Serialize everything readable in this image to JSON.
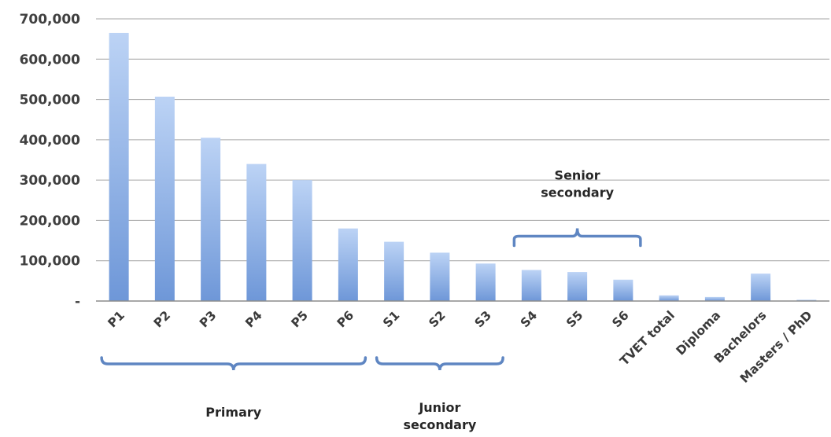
{
  "chart_data": {
    "type": "bar",
    "title": "",
    "xlabel": "",
    "ylabel": "",
    "ylim": [
      0,
      700000
    ],
    "grid": true,
    "categories": [
      "P1",
      "P2",
      "P3",
      "P4",
      "P5",
      "P6",
      "S1",
      "S2",
      "S3",
      "S4",
      "S5",
      "S6",
      "TVET total",
      "Diploma",
      "Bachelors",
      "Masters / PhD"
    ],
    "values": [
      665000,
      507000,
      405000,
      340000,
      300000,
      180000,
      147000,
      120000,
      93000,
      77000,
      72000,
      53000,
      14000,
      10000,
      68000,
      3000
    ],
    "y_ticks": [
      {
        "value": 0,
        "label": "-"
      },
      {
        "value": 100000,
        "label": "100,000"
      },
      {
        "value": 200000,
        "label": "200,000"
      },
      {
        "value": 300000,
        "label": "300,000"
      },
      {
        "value": 400000,
        "label": "400,000"
      },
      {
        "value": 500000,
        "label": "500,000"
      },
      {
        "value": 600000,
        "label": "600,000"
      },
      {
        "value": 700000,
        "label": "700,000"
      }
    ],
    "groups": [
      {
        "label_lines": [
          "Primary"
        ],
        "from": "P1",
        "to": "P6",
        "position": "below-axis"
      },
      {
        "label_lines": [
          "Junior",
          "secondary"
        ],
        "from": "S1",
        "to": "S3",
        "position": "below-axis"
      },
      {
        "label_lines": [
          "Senior",
          "secondary"
        ],
        "from": "S4",
        "to": "S6",
        "position": "above-bars"
      }
    ],
    "colors": {
      "bar_top": "#bcd3f5",
      "bar_bottom": "#6e97d8",
      "bracket": "#5f86c2",
      "grid": "#a6a6a6",
      "axis": "#8c8c8c"
    }
  }
}
